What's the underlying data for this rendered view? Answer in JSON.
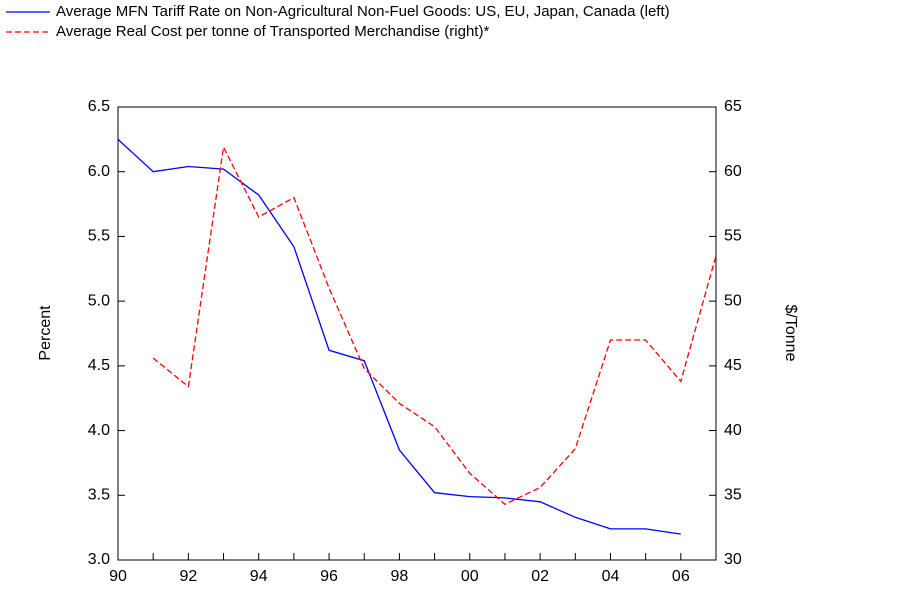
{
  "chart_data": {
    "type": "line",
    "categories": [
      "90",
      null,
      "92",
      null,
      "94",
      null,
      "96",
      null,
      "98",
      null,
      "00",
      null,
      "02",
      null,
      "04",
      null,
      "06",
      null
    ],
    "series": [
      {
        "name": "Average MFN Tariff Rate on Non-Agricultural Non-Fuel Goods: US, EU, Japan, Canada (left)",
        "color": "#0000ff",
        "dash": "solid",
        "axis": "y",
        "values": [
          6.25,
          6.0,
          6.04,
          6.02,
          5.82,
          5.42,
          4.62,
          4.54,
          3.85,
          3.52,
          3.49,
          3.48,
          3.45,
          3.33,
          3.24,
          3.24,
          3.2,
          null
        ]
      },
      {
        "name": "Average Real Cost per tonne of Transported Merchandise (right)*",
        "color": "#ff0000",
        "dash": "dashed",
        "axis": "y2",
        "values": [
          null,
          45.6,
          43.4,
          61.9,
          56.5,
          58.0,
          51.0,
          44.8,
          42.1,
          40.3,
          36.7,
          34.3,
          35.6,
          38.6,
          47.0,
          47.0,
          43.8,
          53.5
        ]
      }
    ],
    "ylabel": "Percent",
    "y2label": "$/Tonne",
    "ylim": [
      3.0,
      6.5
    ],
    "yticks": [
      {
        "value": 3,
        "label": "3.0"
      },
      3.5,
      {
        "value": 4,
        "label": "4.0"
      },
      4.5,
      {
        "value": 5,
        "label": "5.0"
      },
      5.5,
      {
        "value": 6,
        "label": "6.0"
      },
      6.5
    ],
    "y2lim": [
      30,
      65
    ],
    "y2ticks": [
      30,
      35,
      40,
      45,
      50,
      55,
      60,
      65
    ],
    "grid": false
  }
}
